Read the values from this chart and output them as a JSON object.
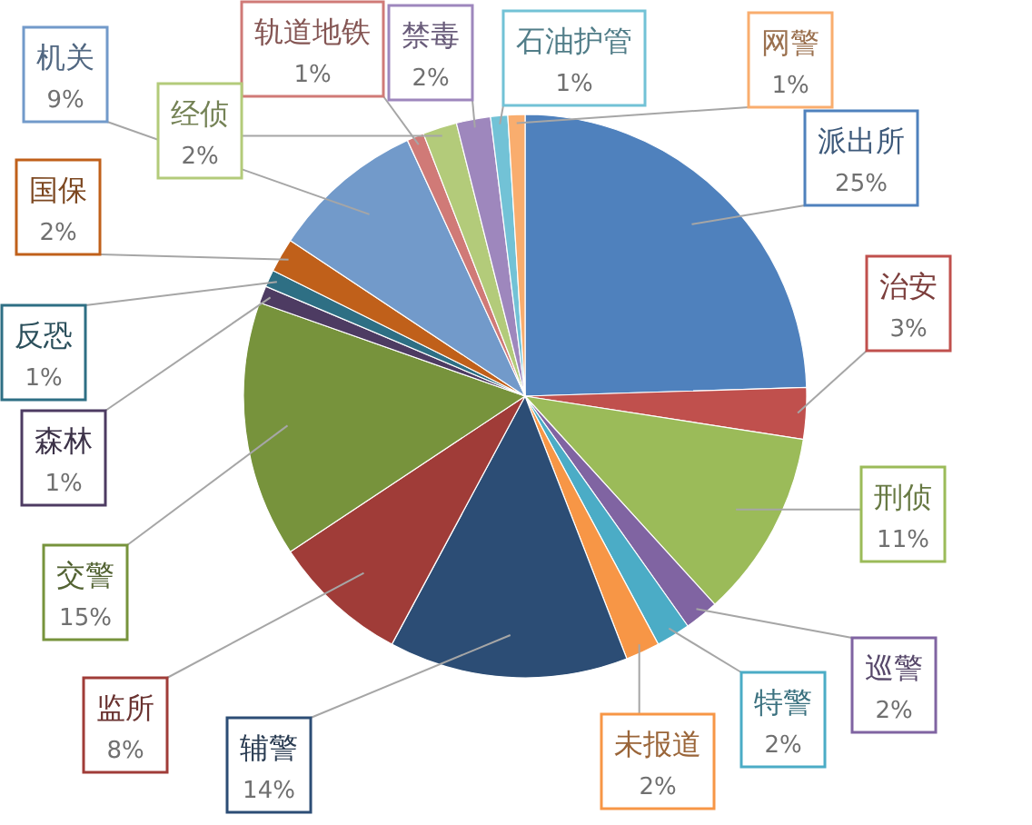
{
  "chart_data": {
    "type": "pie",
    "categories": [
      "派出所",
      "治安",
      "刑侦",
      "巡警",
      "特警",
      "未报道",
      "辅警",
      "监所",
      "交警",
      "森林",
      "反恐",
      "国保",
      "机关",
      "轨道地铁",
      "经侦",
      "禁毒",
      "石油护管",
      "网警"
    ],
    "values": [
      25,
      3,
      11,
      2,
      2,
      2,
      14,
      8,
      15,
      1,
      1,
      2,
      9,
      1,
      2,
      2,
      1,
      1
    ],
    "value_labels": [
      "25%",
      "3%",
      "11%",
      "2%",
      "2%",
      "2%",
      "14%",
      "8%",
      "15%",
      "1%",
      "1%",
      "2%",
      "9%",
      "1%",
      "2%",
      "2%",
      "1%",
      "1%"
    ],
    "colors": [
      "#4f81bd",
      "#c0504d",
      "#9bbb59",
      "#8064a2",
      "#4bacc6",
      "#f79646",
      "#2c4d75",
      "#a03c38",
      "#77933c",
      "#4d3b62",
      "#2e6f84",
      "#c0601a",
      "#729aca",
      "#d07a77",
      "#b3cb7a",
      "#9e87bd",
      "#72c2d6",
      "#f9ad6e"
    ]
  }
}
